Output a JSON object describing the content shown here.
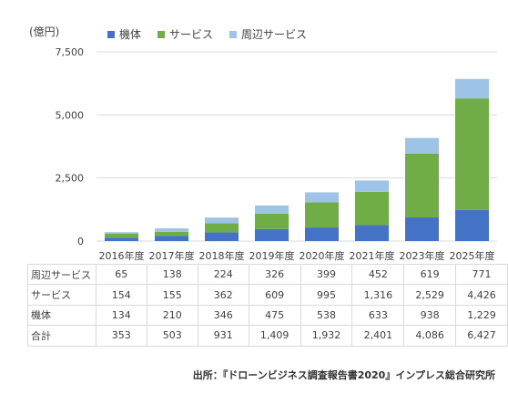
{
  "unit_label": "(億円)",
  "source": "出所：『ドローンビジネス調査報告書2020』インプレス総合研究所",
  "colors": {
    "body": "#4472C4",
    "service": "#70AD47",
    "peripheral": "#9DC3E6",
    "gridline": "#D9D9D9"
  },
  "chart_data": {
    "type": "bar",
    "stacked": true,
    "categories": [
      "2016年度",
      "2017年度",
      "2018年度",
      "2019年度",
      "2020年度",
      "2021年度",
      "2023年度",
      "2025年度"
    ],
    "series": [
      {
        "name": "機体",
        "values": [
          134,
          210,
          346,
          475,
          538,
          633,
          938,
          1229
        ]
      },
      {
        "name": "サービス",
        "values": [
          154,
          155,
          362,
          609,
          995,
          1316,
          2529,
          4426
        ]
      },
      {
        "name": "周辺サービス",
        "values": [
          65,
          138,
          224,
          326,
          399,
          452,
          619,
          771
        ]
      }
    ],
    "ylim": [
      0,
      7500
    ],
    "yticks": [
      0,
      2500,
      5000,
      7500
    ],
    "ytick_labels": [
      "0",
      "2,500",
      "5,000",
      "7,500"
    ],
    "grid": true,
    "legend_position": "top"
  },
  "table": {
    "rows": [
      {
        "label": "周辺サービス",
        "values": [
          "65",
          "138",
          "224",
          "326",
          "399",
          "452",
          "619",
          "771"
        ]
      },
      {
        "label": "サービス",
        "values": [
          "154",
          "155",
          "362",
          "609",
          "995",
          "1,316",
          "2,529",
          "4,426"
        ]
      },
      {
        "label": "機体",
        "values": [
          "134",
          "210",
          "346",
          "475",
          "538",
          "633",
          "938",
          "1,229"
        ]
      },
      {
        "label": "合計",
        "values": [
          "353",
          "503",
          "931",
          "1,409",
          "1,932",
          "2,401",
          "4,086",
          "6,427"
        ]
      }
    ]
  }
}
